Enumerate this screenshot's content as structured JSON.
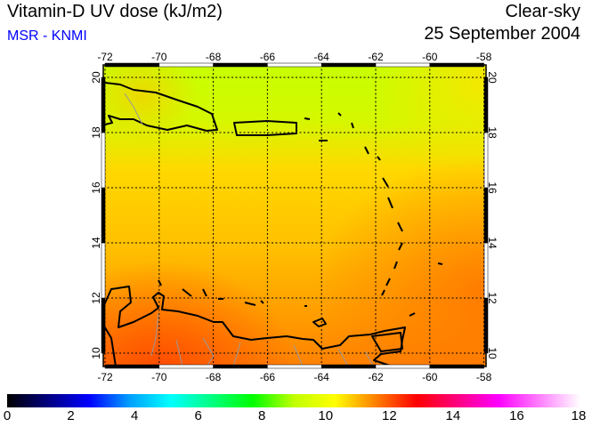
{
  "header": {
    "title": "Vitamin-D UV dose (kJ/m2)",
    "source": "MSR - KNMI",
    "condition": "Clear-sky",
    "date": "25 September 2004"
  },
  "map": {
    "lon_ticks": [
      "-72",
      "-70",
      "-68",
      "-66",
      "-64",
      "-62",
      "-60",
      "-58"
    ],
    "lat_ticks": [
      "10",
      "12",
      "14",
      "16",
      "18",
      "20"
    ],
    "lon_range": [
      -72.2,
      -57.9
    ],
    "lat_range": [
      9.5,
      20.5
    ]
  },
  "colorbar": {
    "labels": [
      "0",
      "2",
      "4",
      "6",
      "8",
      "10",
      "12",
      "14",
      "16",
      "18"
    ],
    "range": [
      0,
      18
    ],
    "colors": [
      "#000000",
      "#000080",
      "#0000ff",
      "#00a0ff",
      "#00ffff",
      "#00ff80",
      "#00ff00",
      "#c0ff00",
      "#ffff00",
      "#ff8000",
      "#ff0000",
      "#ff0080",
      "#ff00ff",
      "#ff80ff",
      "#ffffff"
    ]
  }
}
